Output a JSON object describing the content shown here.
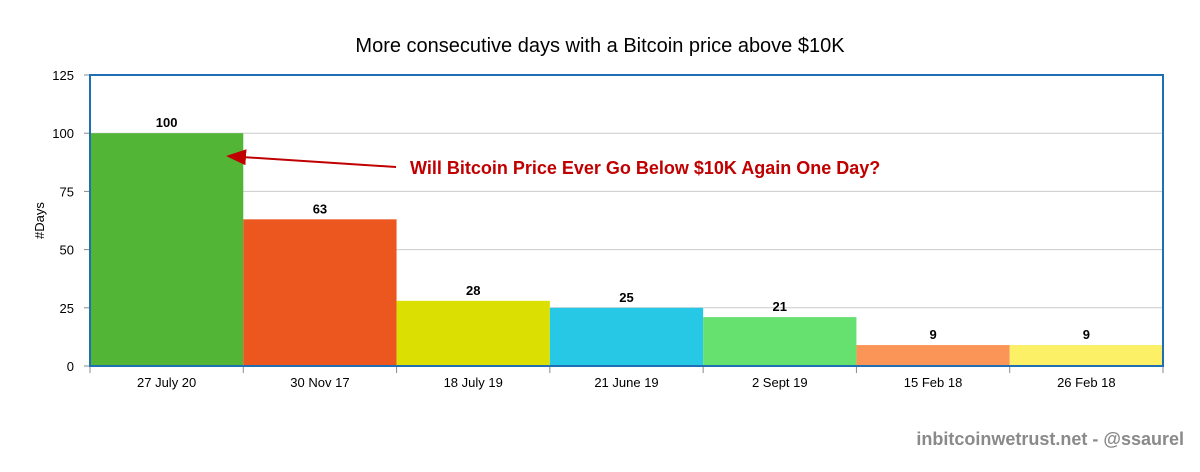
{
  "chart_data": {
    "type": "bar",
    "title": "More consecutive days with a Bitcoin price above $10K",
    "xlabel": "",
    "ylabel": "#Days",
    "ylim": [
      0,
      125
    ],
    "yticks": [
      0,
      25,
      50,
      75,
      100,
      125
    ],
    "grid": true,
    "categories": [
      "27 July 20",
      "30 Nov 17",
      "18 July 19",
      "21 June 19",
      "2 Sept 19",
      "15 Feb 18",
      "26 Feb 18"
    ],
    "values": [
      100,
      63,
      28,
      25,
      21,
      9,
      9
    ],
    "colors": [
      "#52b535",
      "#ec561f",
      "#dce002",
      "#27c8e5",
      "#66e06f",
      "#fb9557",
      "#fbf066"
    ],
    "annotation": {
      "text": "Will Bitcoin Price Ever Go Below $10K Again One Day?",
      "color": "#c00000",
      "points_to_category": "27 July 20"
    }
  },
  "credit": "inbitcoinwetrust.net - @ssaurel",
  "colors": {
    "frame": "#1f6fb5",
    "grid": "#cccccc"
  }
}
